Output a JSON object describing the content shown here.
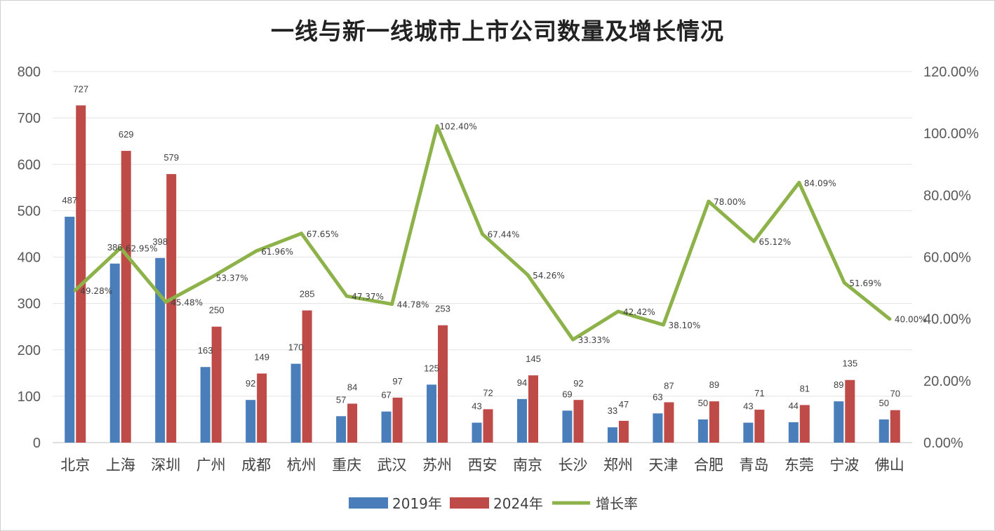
{
  "chart_data": {
    "type": "bar",
    "title": "一线与新一线城市上市公司数量及增长情况",
    "categories": [
      "北京",
      "上海",
      "深圳",
      "广州",
      "成都",
      "杭州",
      "重庆",
      "武汉",
      "苏州",
      "西安",
      "南京",
      "长沙",
      "郑州",
      "天津",
      "合肥",
      "青岛",
      "东莞",
      "宁波",
      "佛山"
    ],
    "series": [
      {
        "name": "2019年",
        "kind": "bar",
        "axis": "left",
        "color": "#4a7ebb",
        "values": [
          487,
          386,
          398,
          163,
          92,
          170,
          57,
          67,
          125,
          43,
          94,
          69,
          33,
          63,
          50,
          43,
          44,
          89,
          50
        ],
        "labels": [
          "487",
          "386",
          "398",
          "163",
          "92",
          "170",
          "57",
          "67",
          "125",
          "43",
          "94",
          "69",
          "33",
          "63",
          "50",
          "43",
          "44",
          "89",
          "50"
        ]
      },
      {
        "name": "2024年",
        "kind": "bar",
        "axis": "left",
        "color": "#be4b48",
        "values": [
          727,
          629,
          579,
          250,
          149,
          285,
          84,
          97,
          253,
          72,
          145,
          92,
          47,
          87,
          89,
          71,
          81,
          135,
          70
        ],
        "labels": [
          "727",
          "629",
          "579",
          "250",
          "149",
          "285",
          "84",
          "97",
          "253",
          "72",
          "145",
          "92",
          "47",
          "87",
          "89",
          "71",
          "81",
          "135",
          "70"
        ]
      },
      {
        "name": "增长率",
        "kind": "line",
        "axis": "right",
        "color": "#8db24a",
        "values": [
          49.28,
          62.95,
          45.48,
          53.37,
          61.96,
          67.65,
          47.37,
          44.78,
          102.4,
          67.44,
          54.26,
          33.33,
          42.42,
          38.1,
          78.0,
          65.12,
          84.09,
          51.69,
          40.0
        ],
        "labels": [
          "49.28%",
          "62.95%",
          "45.48%",
          "53.37%",
          "61.96%",
          "67.65%",
          "47.37%",
          "44.78%",
          "102.40%",
          "67.44%",
          "54.26%",
          "33.33%",
          "42.42%",
          "38.10%",
          "78.00%",
          "65.12%",
          "84.09%",
          "51.69%",
          "40.00%"
        ]
      }
    ],
    "y_left": {
      "min": 0,
      "max": 800,
      "ticks": [
        "0",
        "100",
        "200",
        "300",
        "400",
        "500",
        "600",
        "700",
        "800"
      ]
    },
    "y_right": {
      "min": 0,
      "max": 120,
      "ticks": [
        "0.00%",
        "20.00%",
        "40.00%",
        "60.00%",
        "80.00%",
        "100.00%",
        "120.00%"
      ]
    },
    "grid": true,
    "legend": "bottom"
  }
}
